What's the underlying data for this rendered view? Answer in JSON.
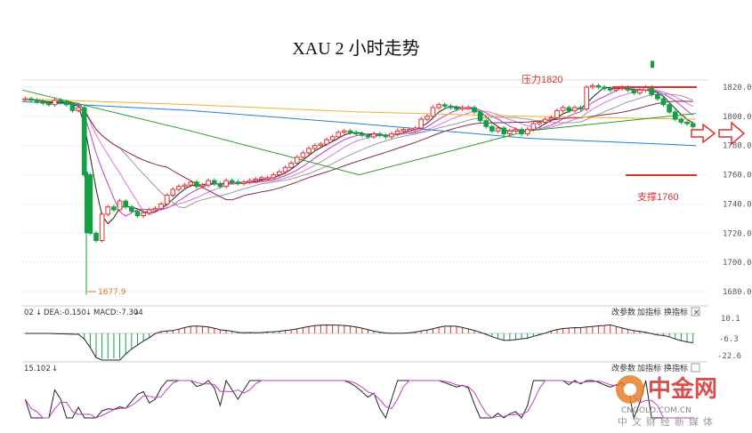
{
  "page": {
    "title": "XAU 2 小时走势"
  },
  "annotations": {
    "resistance": "压力1820",
    "support": "支撑1760",
    "low": "1677.9"
  },
  "panel_macd": {
    "label": "02",
    "dea": "DEA:-0.150",
    "macd": "MACD:-7.304",
    "ticks": [
      "10.1",
      "-6.3",
      "-22.6"
    ]
  },
  "panel_kdj": {
    "value": "15.102"
  },
  "controls": [
    "改参数",
    "加指标",
    "换指标",
    "×"
  ],
  "watermark": {
    "brand": "中金网",
    "site": "CNGOLD.COM.CN",
    "tag": "中文财经新媒体"
  },
  "colors": {
    "up": "#e03030",
    "down": "#13a043",
    "support": "#e03030",
    "resistance": "#e03030"
  },
  "chart_data": {
    "type": "candlestick",
    "title": "XAU 2 小时走势",
    "ylim": [
      1676,
      1830
    ],
    "yticks": [
      1820,
      1800,
      1780,
      1760,
      1740,
      1720,
      1700,
      1680
    ],
    "grid": true,
    "resistance_level": 1820,
    "support_level": 1760,
    "low_marker": 1677.9,
    "close": [
      1812,
      1811,
      1810,
      1809,
      1808,
      1811,
      1810,
      1808,
      1804,
      1806,
      1760,
      1720,
      1715,
      1733,
      1738,
      1736,
      1742,
      1738,
      1735,
      1732,
      1734,
      1736,
      1737,
      1740,
      1746,
      1750,
      1752,
      1753,
      1755,
      1752,
      1753,
      1756,
      1754,
      1752,
      1756,
      1755,
      1754,
      1755,
      1756,
      1757,
      1758,
      1758,
      1760,
      1762,
      1765,
      1768,
      1772,
      1775,
      1778,
      1780,
      1781,
      1784,
      1786,
      1789,
      1790,
      1789,
      1788,
      1787,
      1786,
      1788,
      1787,
      1786,
      1788,
      1790,
      1791,
      1791,
      1792,
      1798,
      1800,
      1806,
      1808,
      1807,
      1806,
      1805,
      1806,
      1806,
      1803,
      1797,
      1793,
      1790,
      1792,
      1788,
      1790,
      1791,
      1788,
      1791,
      1795,
      1796,
      1798,
      1799,
      1804,
      1806,
      1804,
      1806,
      1805,
      1820,
      1821,
      1820,
      1819,
      1818,
      1819,
      1820,
      1818,
      1816,
      1818,
      1820,
      1815,
      1812,
      1808,
      1803,
      1798,
      1796,
      1795,
      1793
    ],
    "ma_lines": [
      {
        "color": "#f0b030",
        "values": [
          1812,
          1808,
          1803,
          1800,
          1798
        ]
      },
      {
        "color": "#2080d0",
        "values": [
          1810,
          1804,
          1795,
          1785,
          1780
        ]
      },
      {
        "color": "#2a9a2a",
        "values": [
          1818,
          1790,
          1760,
          1790,
          1802
        ]
      }
    ]
  }
}
